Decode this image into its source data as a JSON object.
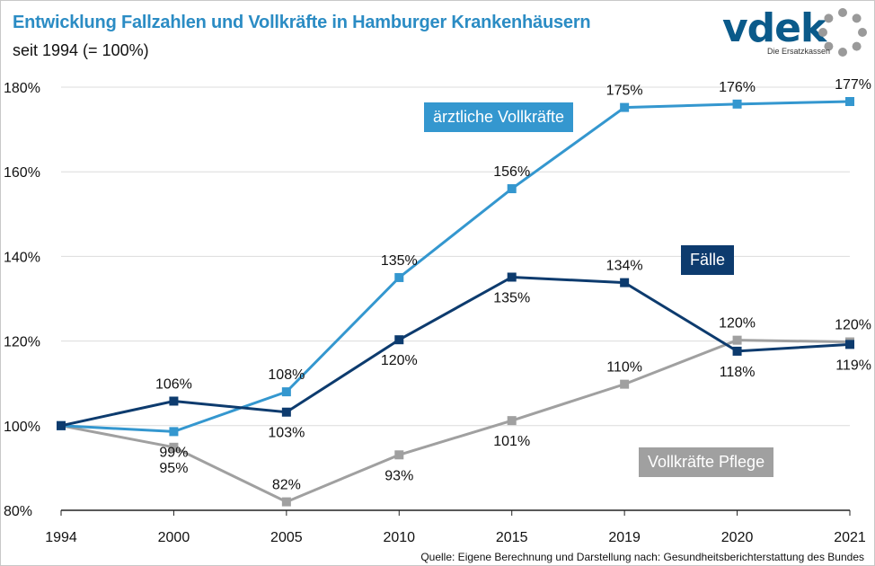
{
  "header": {
    "title": "Entwicklung Fallzahlen und Vollkräfte in Hamburger Krankenhäusern",
    "subtitle": "seit 1994 (= 100%)"
  },
  "logo": {
    "text": "vdek",
    "subtext": "Die Ersatzkassen",
    "color": "#0a5a8a"
  },
  "source": "Quelle: Eigene Berechnung und Darstellung nach: Gesundheitsberichterstattung des Bundes",
  "chart_data": {
    "type": "line",
    "title": "Entwicklung Fallzahlen und Vollkräfte in Hamburger Krankenhäusern",
    "subtitle": "seit 1994 (= 100%)",
    "categories": [
      "1994",
      "2000",
      "2005",
      "2010",
      "2015",
      "2019",
      "2020",
      "2021"
    ],
    "ylim": [
      80,
      180
    ],
    "yticks": [
      80,
      100,
      120,
      140,
      160,
      180
    ],
    "ytick_labels": [
      "80%",
      "100%",
      "120%",
      "140%",
      "160%",
      "180%"
    ],
    "grid": "horizontal",
    "series": [
      {
        "name": "ärztliche Vollkräfte",
        "color": "#3497cf",
        "values": [
          100,
          98.6,
          108,
          135,
          156,
          175.2,
          176,
          176.6
        ],
        "labels": [
          "",
          "99%",
          "108%",
          "135%",
          "156%",
          "175%",
          "176%",
          "177%"
        ],
        "label_pos": [
          "",
          "below",
          "above",
          "above",
          "above",
          "above",
          "above",
          "above"
        ]
      },
      {
        "name": "Fälle",
        "color": "#0d3b6e",
        "values": [
          100,
          105.8,
          103.2,
          120.3,
          135.1,
          133.8,
          117.6,
          119.2
        ],
        "labels": [
          "",
          "106%",
          "103%",
          "120%",
          "135%",
          "134%",
          "118%",
          "119%"
        ],
        "label_pos": [
          "",
          "above",
          "below",
          "below",
          "below",
          "above",
          "below",
          "below"
        ]
      },
      {
        "name": "Vollkräfte Pflege",
        "color": "#a0a0a0",
        "values": [
          100,
          94.9,
          82,
          93.1,
          101.2,
          109.8,
          120.2,
          119.8
        ],
        "labels": [
          "",
          "95%",
          "82%",
          "93%",
          "101%",
          "110%",
          "120%",
          "120%"
        ],
        "label_pos": [
          "",
          "below",
          "above",
          "below",
          "below",
          "above",
          "above",
          "above"
        ]
      }
    ],
    "legend_boxes": [
      {
        "text": "ärztliche Vollkräfte",
        "color": "#3497cf"
      },
      {
        "text": "Fälle",
        "color": "#0d3b6e"
      },
      {
        "text": "Vollkräfte Pflege",
        "color": "#a0a0a0"
      }
    ]
  }
}
